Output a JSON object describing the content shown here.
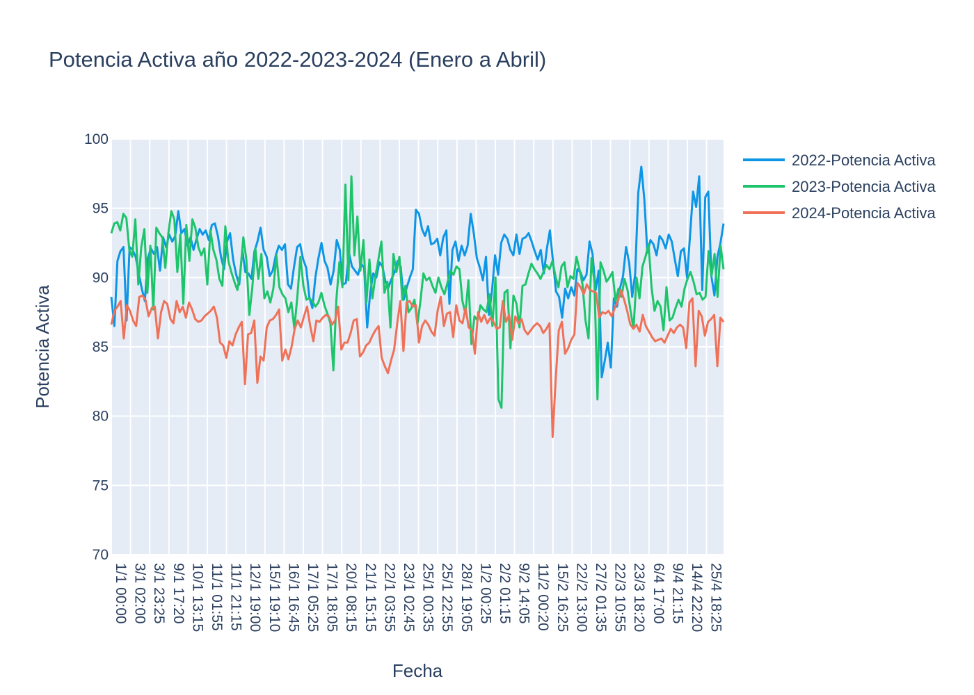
{
  "chart_data": {
    "type": "line",
    "title": "Potencia Activa año 2022-2023-2024 (Enero a Abril)",
    "xlabel": "Fecha",
    "ylabel": "Potencia Activa",
    "ylim": [
      70,
      100
    ],
    "y_ticks": [
      70,
      75,
      80,
      85,
      90,
      95,
      100
    ],
    "x_tick_labels": [
      "1/1 00:00",
      "3/1 02:00",
      "3/1 23:25",
      "9/1 17:20",
      "10/1 13:15",
      "11/1 01:55",
      "11/1 21:15",
      "12/1 19:00",
      "15/1 19:10",
      "16/1 16:45",
      "17/1 05:25",
      "17/1 18:05",
      "20/1 08:15",
      "21/1 15:15",
      "22/1 03:55",
      "23/1 02:45",
      "25/1 00:35",
      "25/1 22:55",
      "28/1 19:05",
      "1/2 00:25",
      "2/2 01:15",
      "9/2 14:05",
      "11/2 00:20",
      "15/2 16:25",
      "22/2 13:00",
      "27/2 01:35",
      "22/3 10:55",
      "23/3 18:20",
      "6/4 17:00",
      "9/4 21:15",
      "14/4 22:20",
      "25/4 18:25"
    ],
    "grid": true,
    "legend_position": "top-right",
    "series": [
      {
        "name": "2022-Potencia Activa",
        "color": "#0d96e6",
        "values": [
          88.6,
          86.5,
          91.2,
          91.9,
          92.2,
          86.9,
          92.2,
          92.0,
          91.5,
          90.3,
          89.2,
          88.3,
          91.4,
          92.1,
          91.7,
          92.2,
          90.5,
          92.9,
          92.2,
          93.1,
          92.6,
          93.0,
          94.8,
          93.2,
          93.5,
          92.3,
          92.9,
          92.0,
          92.8,
          93.5,
          93.1,
          93.4,
          92.7,
          93.8,
          93.9,
          93.0,
          91.5,
          90.6,
          92.6,
          93.2,
          91.3,
          90.2,
          89.5,
          92.0,
          90.4,
          90.3,
          89.9,
          91.9,
          92.6,
          93.6,
          92.0,
          91.5,
          90.1,
          90.5,
          91.6,
          92.3,
          92.0,
          92.4,
          89.5,
          89.2,
          90.8,
          92.2,
          92.4,
          91.3,
          90.7,
          88.6,
          87.8,
          90.0,
          91.4,
          92.5,
          91.2,
          90.7,
          89.5,
          90.5,
          92.7,
          92.0,
          89.5,
          89.6,
          91.8,
          90.8,
          90.5,
          90.2,
          91.0,
          90.7,
          86.4,
          88.9,
          90.3,
          90.0,
          91.1,
          90.8,
          89.7,
          89.3,
          89.9,
          90.4,
          91.2,
          90.8,
          88.4,
          89.3,
          90.0,
          90.6,
          94.9,
          94.6,
          93.5,
          93.0,
          93.7,
          92.4,
          92.5,
          92.8,
          91.6,
          92.9,
          93.4,
          88.1,
          92.0,
          92.6,
          91.2,
          92.3,
          91.6,
          92.3,
          94.6,
          93.2,
          91.4,
          90.7,
          89.8,
          91.5,
          87.3,
          89.1,
          91.6,
          90.2,
          92.5,
          93.1,
          92.8,
          92.0,
          91.6,
          93.1,
          91.7,
          92.8,
          92.9,
          93.2,
          92.6,
          91.9,
          91.3,
          92.0,
          90.3,
          92.1,
          93.4,
          91.2,
          89.0,
          88.6,
          87.1,
          89.2,
          88.5,
          89.3,
          88.7,
          90.6,
          90.4,
          89.8,
          90.2,
          92.6,
          91.7,
          89.1,
          90.5,
          82.8,
          84.0,
          85.3,
          83.5,
          88.5,
          87.9,
          89.2,
          90.1,
          92.2,
          91.1,
          88.6,
          90.3,
          96.1,
          98.0,
          95.6,
          91.8,
          92.7,
          92.4,
          91.6,
          93.0,
          92.7,
          92.1,
          93.1,
          92.6,
          91.3,
          90.1,
          91.9,
          92.1,
          90.0,
          93.0,
          96.2,
          95.1,
          97.3,
          89.1,
          95.8,
          96.2,
          90.1,
          88.7,
          91.5,
          92.5,
          93.9
        ]
      },
      {
        "name": "2023-Potencia Activa",
        "color": "#1ec46b",
        "values": [
          93.2,
          93.9,
          94.0,
          93.4,
          94.6,
          94.3,
          92.0,
          91.5,
          94.2,
          89.5,
          92.2,
          93.5,
          88.9,
          92.3,
          87.7,
          93.6,
          93.2,
          92.9,
          90.7,
          93.2,
          94.8,
          94.2,
          90.4,
          93.1,
          88.1,
          93.8,
          91.2,
          94.2,
          93.6,
          92.2,
          91.6,
          92.1,
          89.5,
          93.4,
          92.0,
          91.3,
          89.9,
          89.4,
          93.7,
          91.2,
          90.4,
          89.7,
          89.1,
          90.4,
          92.9,
          91.3,
          87.3,
          89.3,
          92.1,
          89.9,
          91.7,
          88.5,
          89.0,
          88.2,
          89.2,
          91.6,
          89.3,
          88.8,
          88.5,
          87.5,
          88.2,
          86.3,
          88.7,
          91.5,
          89.4,
          88.4,
          88.5,
          88.3,
          87.9,
          88.2,
          88.9,
          88.0,
          87.4,
          86.7,
          83.3,
          88.4,
          91.1,
          89.3,
          96.7,
          89.8,
          97.3,
          91.6,
          94.4,
          90.5,
          92.7,
          88.2,
          91.3,
          88.5,
          90.1,
          91.3,
          92.6,
          88.9,
          89.7,
          86.4,
          91.7,
          90.4,
          91.5,
          88.4,
          89.4,
          87.5,
          87.8,
          88.4,
          86.6,
          88.3,
          90.3,
          89.8,
          90.0,
          89.4,
          88.9,
          90.0,
          89.3,
          88.8,
          89.6,
          90.5,
          90.2,
          90.8,
          90.6,
          88.3,
          87.4,
          89.8,
          85.2,
          87.2,
          86.9,
          88.0,
          87.7,
          87.5,
          88.8,
          86.5,
          90.0,
          81.2,
          80.6,
          88.9,
          89.1,
          84.9,
          88.7,
          88.1,
          86.4,
          89.4,
          89.5,
          90.3,
          91.0,
          90.6,
          90.3,
          89.9,
          90.4,
          90.9,
          90.6,
          91.2,
          90.1,
          89.3,
          90.8,
          91.1,
          89.3,
          90.1,
          89.9,
          91.5,
          90.6,
          89.5,
          86.9,
          85.6,
          91.4,
          89.6,
          81.2,
          91.1,
          90.5,
          89.7,
          90.0,
          90.4,
          88.3,
          89.2,
          88.6,
          89.9,
          89.1,
          87.6,
          86.3,
          90.0,
          88.5,
          90.8,
          91.5,
          92.4,
          89.3,
          87.6,
          88.3,
          87.9,
          86.2,
          89.3,
          86.9,
          87.1,
          87.8,
          88.4,
          87.9,
          89.2,
          89.9,
          90.4,
          89.7,
          88.8,
          88.9,
          88.4,
          88.6,
          91.9,
          90.1,
          91.7,
          88.6,
          92.3,
          90.6
        ]
      },
      {
        "name": "2024-Potencia Activa",
        "color": "#ef7158",
        "values": [
          86.6,
          87.6,
          87.9,
          88.3,
          85.6,
          88.0,
          87.6,
          86.9,
          86.5,
          88.6,
          88.7,
          88.4,
          87.2,
          87.8,
          87.9,
          85.6,
          87.5,
          88.3,
          88.1,
          87.0,
          86.7,
          88.3,
          87.5,
          87.9,
          87.1,
          88.2,
          87.7,
          87.0,
          86.8,
          86.9,
          87.2,
          87.4,
          87.6,
          87.9,
          87.1,
          85.3,
          85.1,
          84.2,
          85.4,
          85.1,
          85.9,
          86.4,
          86.8,
          82.3,
          85.9,
          86.0,
          86.9,
          82.4,
          84.3,
          84.0,
          86.4,
          86.9,
          87.0,
          87.3,
          87.7,
          84.0,
          84.8,
          84.1,
          85.0,
          86.3,
          86.9,
          86.4,
          87.2,
          87.9,
          86.5,
          85.4,
          86.9,
          86.8,
          87.1,
          87.3,
          87.2,
          86.6,
          86.9,
          87.9,
          84.8,
          85.3,
          85.3,
          86.0,
          86.9,
          87.0,
          84.3,
          84.6,
          85.1,
          85.3,
          85.8,
          86.2,
          86.5,
          84.2,
          83.6,
          83.1,
          84.0,
          84.8,
          86.7,
          88.3,
          84.7,
          88.2,
          88.3,
          87.9,
          88.0,
          85.3,
          86.5,
          86.9,
          86.6,
          86.1,
          85.8,
          87.6,
          88.6,
          86.5,
          87.4,
          87.5,
          85.7,
          88.0,
          86.9,
          86.7,
          87.8,
          86.4,
          86.2,
          84.5,
          87.5,
          86.8,
          87.3,
          86.7,
          87.1,
          86.8,
          86.3,
          86.4,
          88.3,
          86.8,
          87.3,
          85.5,
          87.2,
          86.7,
          87.0,
          86.2,
          85.9,
          86.2,
          86.5,
          86.7,
          86.5,
          86.0,
          86.3,
          86.7,
          78.5,
          82.7,
          86.2,
          86.8,
          84.5,
          84.9,
          85.5,
          85.9,
          89.6,
          89.3,
          88.8,
          89.5,
          89.1,
          89.0,
          88.9,
          87.1,
          87.5,
          87.4,
          87.6,
          87.2,
          87.8,
          88.3,
          89.1,
          88.4,
          87.6,
          86.6,
          86.3,
          86.6,
          86.1,
          87.3,
          86.5,
          86.1,
          85.7,
          85.4,
          85.5,
          85.6,
          85.3,
          85.8,
          86.3,
          86.0,
          86.4,
          86.6,
          86.4,
          84.9,
          88.2,
          88.5,
          83.6,
          87.6,
          87.2,
          85.8,
          86.8,
          87.0,
          87.3,
          83.6,
          87.1,
          86.8
        ]
      }
    ]
  }
}
